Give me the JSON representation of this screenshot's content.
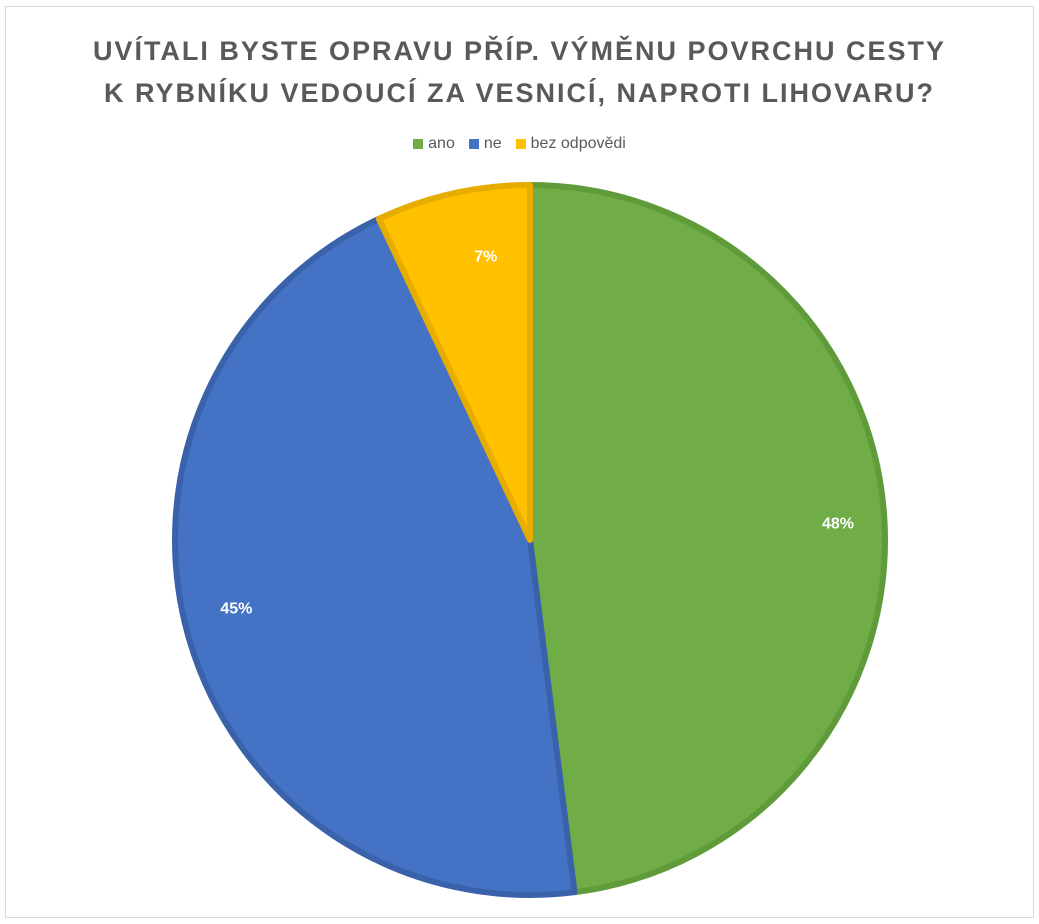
{
  "chart_data": {
    "type": "pie",
    "title_lines": [
      "UVÍTALI BYSTE OPRAVU PŘÍP. VÝMĚNU POVRCHU CESTY",
      "K RYBNÍKU VEDOUCÍ ZA VESNICÍ, NAPROTI LIHOVARU?"
    ],
    "legend_placement": "top",
    "slices": [
      {
        "name": "ano",
        "value": 48,
        "label": "48%",
        "color": "#70ad47",
        "stroke": "#5f9b3a"
      },
      {
        "name": "ne",
        "value": 45,
        "label": "45%",
        "color": "#4472c4",
        "stroke": "#3a62aa"
      },
      {
        "name": "bez odpovědi",
        "value": 7,
        "label": "7%",
        "color": "#ffc000",
        "stroke": "#e6ad00"
      }
    ]
  }
}
